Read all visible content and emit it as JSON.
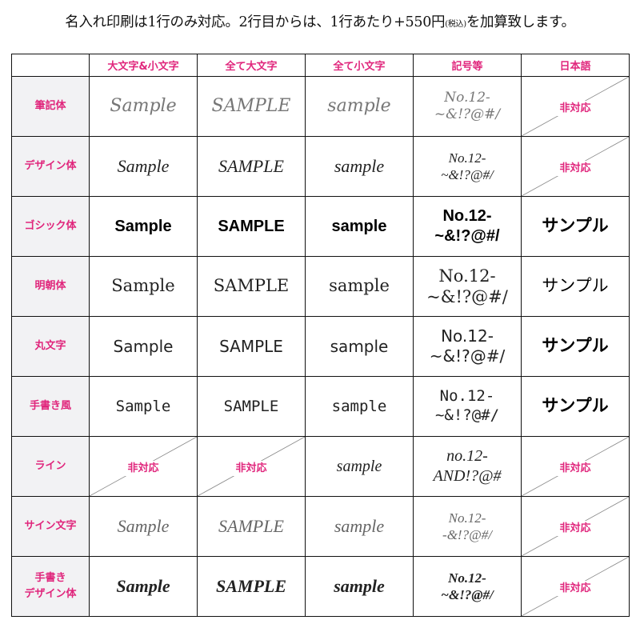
{
  "title": {
    "main": "名入れ印刷は1行のみ対応。2行目からは、1行あたり+550円",
    "tax": "(税込)",
    "tail": "を加算致します。"
  },
  "header": [
    "",
    "大文字&小文字",
    "全て大文字",
    "全て小文字",
    "記号等",
    "日本語"
  ],
  "unsupported_label": "非対応",
  "colors": {
    "accent": "#e0267c",
    "label_bg": "#f2f2f4",
    "border": "#111111"
  },
  "rows": [
    {
      "label": [
        "筆記体"
      ],
      "cells": [
        "Sample",
        "SAMPLE",
        "sample",
        [
          "No.12-",
          "~&!?@#/"
        ],
        null
      ]
    },
    {
      "label": [
        "デザイン体"
      ],
      "cells": [
        "Sample",
        "SAMPLE",
        "sample",
        [
          "No.12-",
          "~&!?@#/"
        ],
        null
      ]
    },
    {
      "label": [
        "ゴシック体"
      ],
      "cells": [
        "Sample",
        "SAMPLE",
        "sample",
        [
          "No.12-",
          "~&!?@#/"
        ],
        "サンプル"
      ]
    },
    {
      "label": [
        "明朝体"
      ],
      "cells": [
        "Sample",
        "SAMPLE",
        "sample",
        [
          "No.12-",
          "~&!?@#/"
        ],
        "サンプル"
      ]
    },
    {
      "label": [
        "丸文字"
      ],
      "cells": [
        "Sample",
        "SAMPLE",
        "sample",
        [
          "No.12-",
          "~&!?@#/"
        ],
        "サンプル"
      ]
    },
    {
      "label": [
        "手書き風"
      ],
      "cells": [
        "Sample",
        "SAMPLE",
        "sample",
        [
          "No.12-",
          "~&!?@#/"
        ],
        "サンプル"
      ]
    },
    {
      "label": [
        "ライン"
      ],
      "cells": [
        null,
        null,
        "sample",
        [
          "no.12-",
          "AND!?@#"
        ],
        null
      ]
    },
    {
      "label": [
        "サイン文字"
      ],
      "cells": [
        "Sample",
        "SAMPLE",
        "sample",
        [
          "No.12-",
          "-&!?@#/"
        ],
        null
      ]
    },
    {
      "label": [
        "手書き",
        "デザイン体"
      ],
      "cells": [
        "Sample",
        "SAMPLE",
        "sample",
        [
          "No.12-",
          "~&!?@#/"
        ],
        null
      ]
    }
  ]
}
